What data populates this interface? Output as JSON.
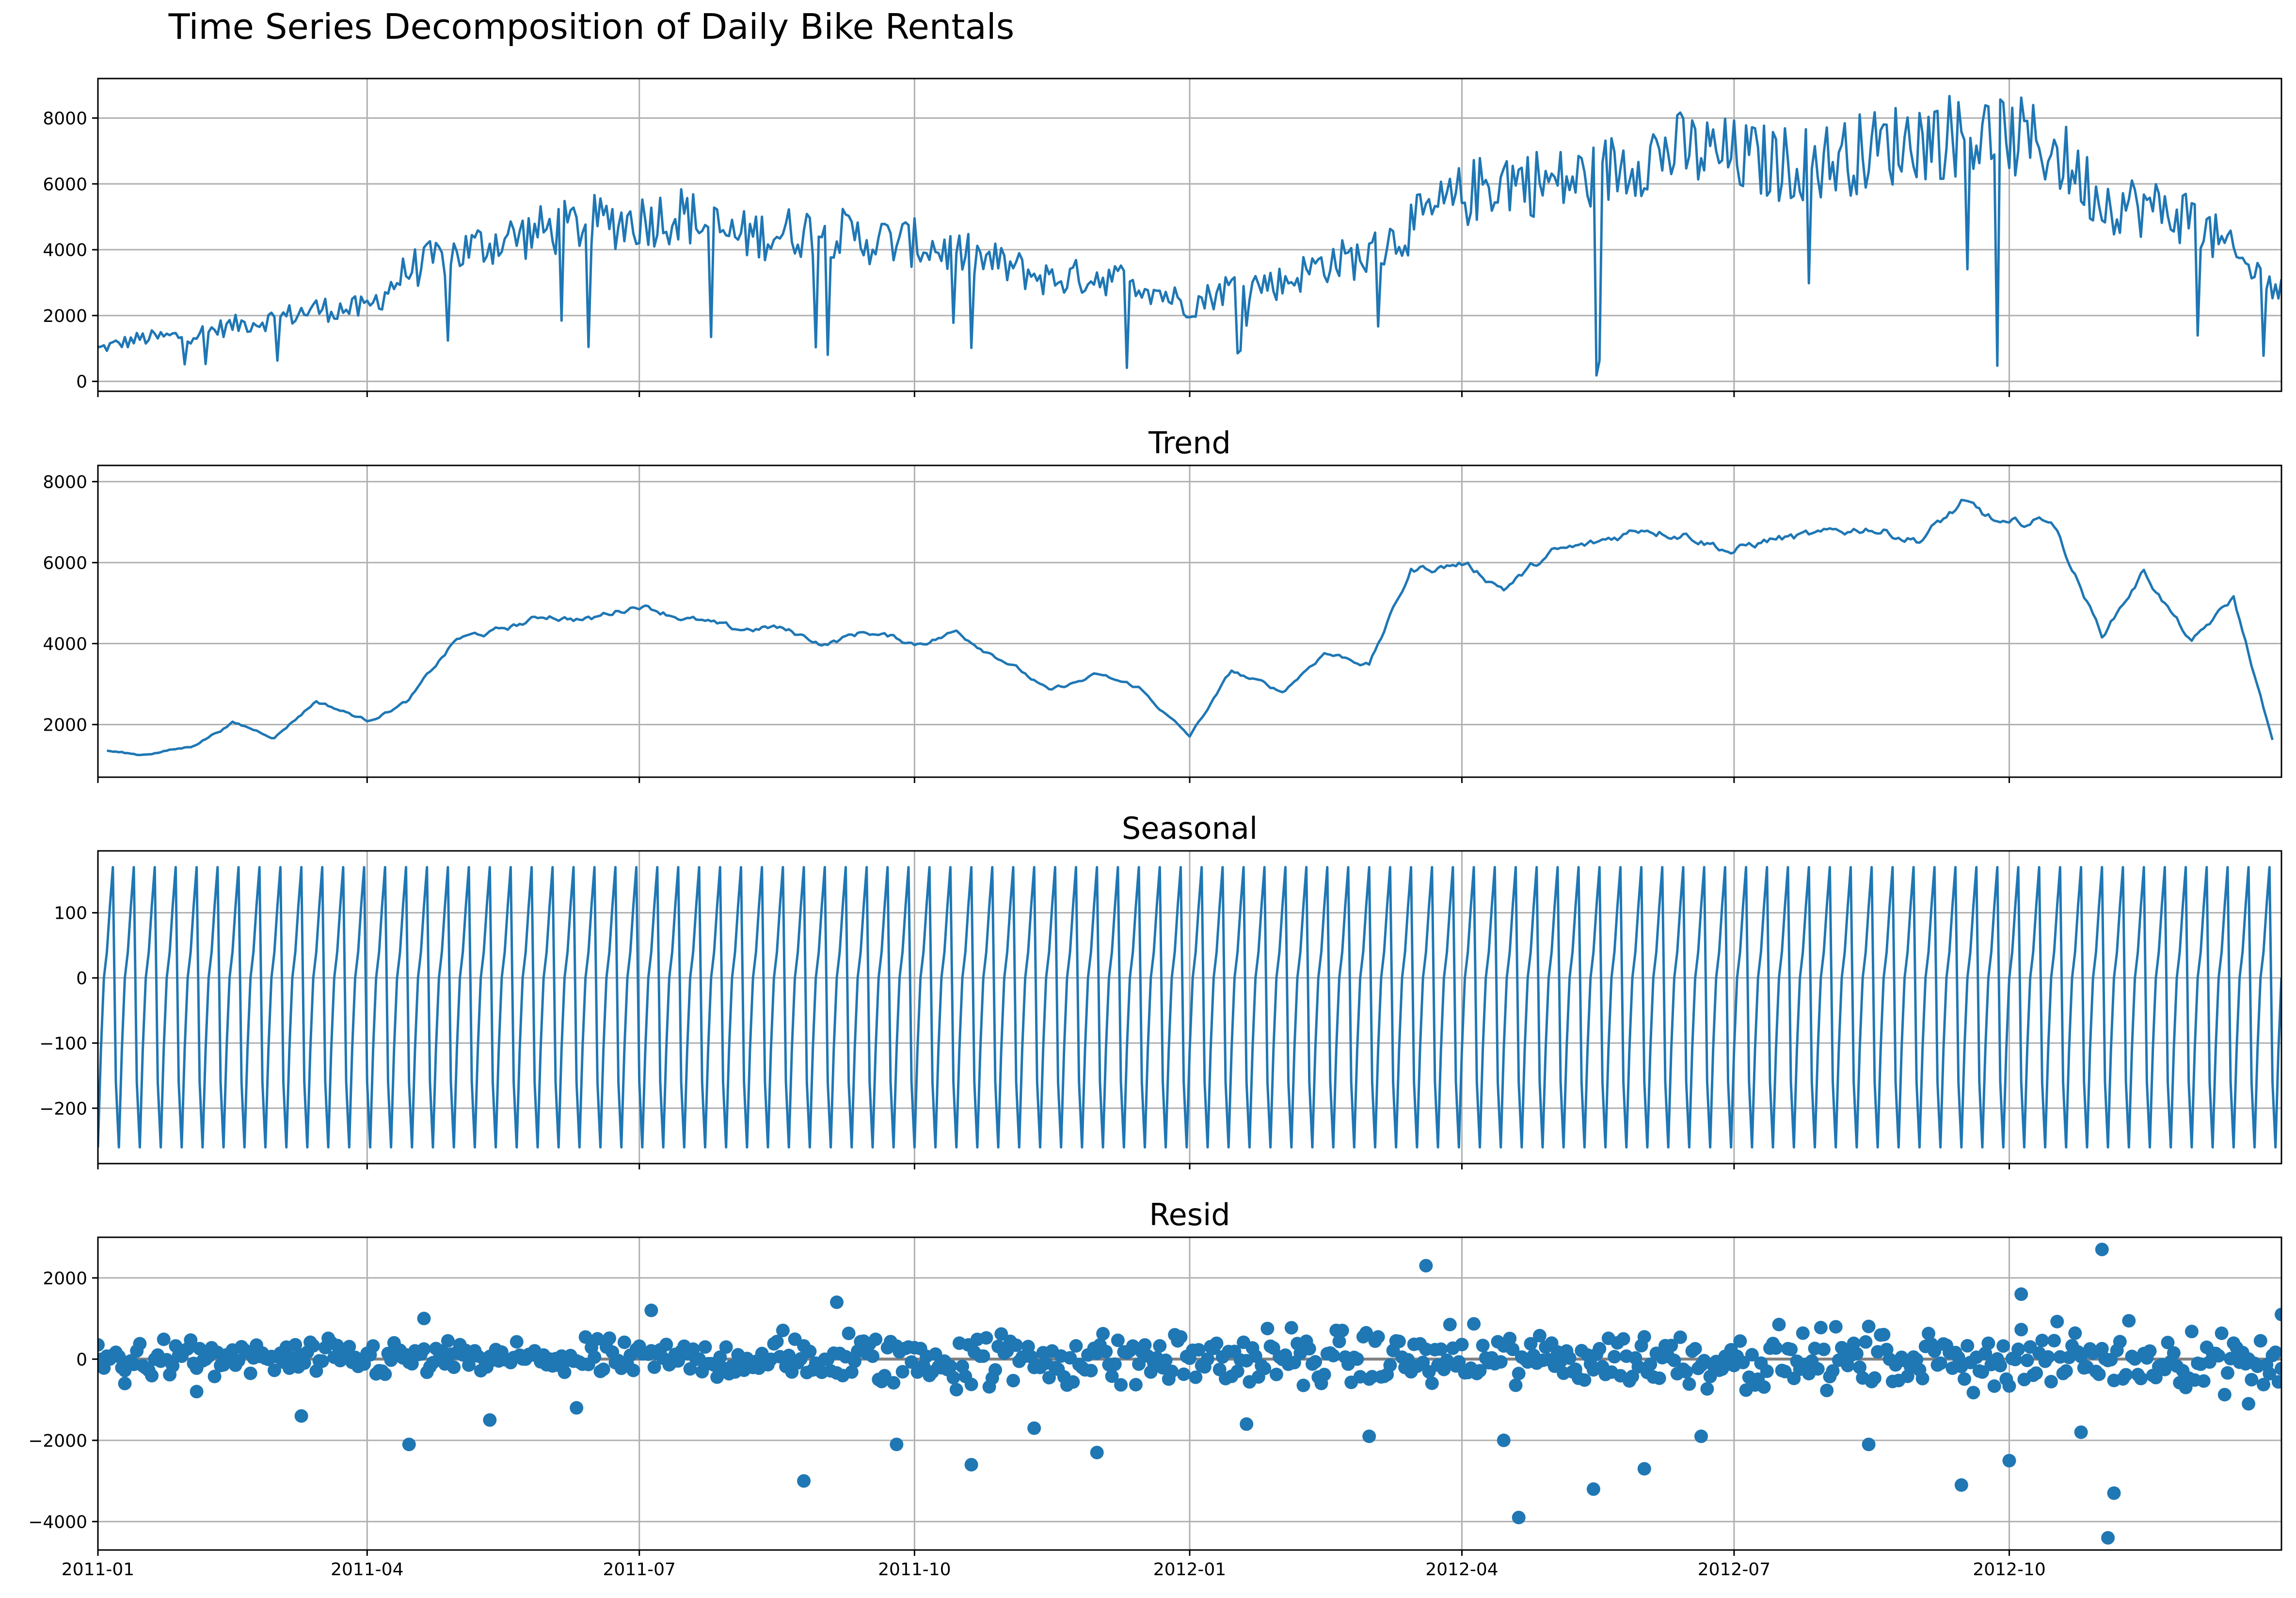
{
  "figure": {
    "title": "Time Series Decomposition of Daily Bike Rentals",
    "line_color": "#1f77b4",
    "grid_color": "#b0b0b0",
    "zero_line_color": "#808080"
  },
  "chart_data": [
    {
      "type": "line",
      "title": "",
      "series_key": "observed",
      "ylim": [
        -300,
        9200
      ],
      "yticks": [
        0,
        2000,
        4000,
        6000,
        8000
      ],
      "ytick_labels": [
        "0",
        "2000",
        "4000",
        "6000",
        "8000"
      ],
      "xlim": [
        "2011-01-01",
        "2012-12-31"
      ],
      "grid": true,
      "x": [
        "2011-01-01",
        "2011-01-15",
        "2011-02-01",
        "2011-02-15",
        "2011-03-01",
        "2011-03-15",
        "2011-04-01",
        "2011-04-15",
        "2011-05-01",
        "2011-05-15",
        "2011-06-01",
        "2011-06-15",
        "2011-07-01",
        "2011-07-15",
        "2011-08-01",
        "2011-08-15",
        "2011-09-01",
        "2011-09-15",
        "2011-10-01",
        "2011-10-15",
        "2011-11-01",
        "2011-11-15",
        "2011-12-01",
        "2011-12-15",
        "2012-01-01",
        "2012-01-15",
        "2012-02-01",
        "2012-02-15",
        "2012-03-01",
        "2012-03-15",
        "2012-04-01",
        "2012-04-15",
        "2012-05-01",
        "2012-05-15",
        "2012-06-01",
        "2012-06-15",
        "2012-07-01",
        "2012-07-15",
        "2012-08-01",
        "2012-08-15",
        "2012-09-01",
        "2012-09-15",
        "2012-10-01",
        "2012-10-15",
        "2012-11-01",
        "2012-11-15",
        "2012-12-01",
        "2012-12-15",
        "2012-12-31"
      ],
      "values": [
        985,
        1300,
        1400,
        1700,
        1900,
        2200,
        2200,
        3400,
        3900,
        4300,
        4600,
        4800,
        4900,
        5100,
        4400,
        4500,
        4600,
        4300,
        4200,
        3900,
        3500,
        3100,
        3200,
        3000,
        2300,
        2900,
        3000,
        3600,
        3800,
        4700,
        5600,
        6200,
        6000,
        6200,
        6900,
        7000,
        6800,
        6600,
        6700,
        7000,
        7400,
        7500,
        7400,
        7100,
        5500,
        5300,
        5000,
        3800,
        2700
      ]
    },
    {
      "type": "line",
      "title": "Trend",
      "series_key": "trend",
      "ylim": [
        700,
        8400
      ],
      "yticks": [
        2000,
        4000,
        6000,
        8000
      ],
      "ytick_labels": [
        "2000",
        "4000",
        "6000",
        "8000"
      ],
      "xlim": [
        "2011-01-01",
        "2012-12-31"
      ],
      "grid": true,
      "x": [
        "2011-01-04",
        "2011-01-15",
        "2011-02-01",
        "2011-02-15",
        "2011-03-01",
        "2011-03-15",
        "2011-04-01",
        "2011-04-15",
        "2011-05-01",
        "2011-05-15",
        "2011-06-01",
        "2011-06-15",
        "2011-07-01",
        "2011-07-15",
        "2011-08-01",
        "2011-08-15",
        "2011-09-01",
        "2011-09-15",
        "2011-10-01",
        "2011-10-15",
        "2011-11-01",
        "2011-11-15",
        "2011-12-01",
        "2011-12-15",
        "2012-01-01",
        "2012-01-15",
        "2012-02-01",
        "2012-02-15",
        "2012-03-01",
        "2012-03-15",
        "2012-04-01",
        "2012-04-15",
        "2012-05-01",
        "2012-05-15",
        "2012-06-01",
        "2012-06-15",
        "2012-07-01",
        "2012-07-15",
        "2012-08-01",
        "2012-08-15",
        "2012-09-01",
        "2012-09-15",
        "2012-10-01",
        "2012-10-15",
        "2012-11-01",
        "2012-11-15",
        "2012-12-01",
        "2012-12-15",
        "2012-12-28"
      ],
      "values": [
        1350,
        1250,
        1450,
        2050,
        1700,
        2600,
        2100,
        2600,
        4100,
        4300,
        4700,
        4600,
        5000,
        4700,
        4300,
        4400,
        4000,
        4300,
        4000,
        4300,
        3600,
        2800,
        3200,
        2900,
        1700,
        3300,
        2800,
        3800,
        3500,
        5800,
        6000,
        5400,
        6200,
        6400,
        6900,
        6800,
        6300,
        6600,
        6600,
        6900,
        6600,
        7400,
        6800,
        7100,
        4200,
        5800,
        4000,
        5100,
        1600
      ]
    },
    {
      "type": "line",
      "title": "Seasonal",
      "series_key": "seasonal",
      "ylim": [
        -285,
        195
      ],
      "yticks": [
        -200,
        -100,
        0,
        100
      ],
      "ytick_labels": [
        "−200",
        "−100",
        "0",
        "100"
      ],
      "xlim": [
        "2011-01-01",
        "2012-12-31"
      ],
      "grid": true,
      "period_days": 7,
      "weekly_pattern": [
        -260,
        -110,
        0,
        40,
        110,
        170,
        -160
      ]
    },
    {
      "type": "scatter",
      "title": "Resid",
      "series_key": "resid",
      "ylim": [
        -4700,
        3000
      ],
      "yticks": [
        -4000,
        -2000,
        0,
        2000
      ],
      "ytick_labels": [
        "−4000",
        "−2000",
        "0",
        "2000"
      ],
      "xlim": [
        "2011-01-01",
        "2012-12-31"
      ],
      "grid": true,
      "zero_line": true,
      "x": [
        "2011-01-10",
        "2011-02-03",
        "2011-03-10",
        "2011-04-15",
        "2011-04-20",
        "2011-05-12",
        "2011-06-10",
        "2011-07-05",
        "2011-08-25",
        "2011-09-05",
        "2011-09-25",
        "2011-10-20",
        "2011-11-10",
        "2011-12-01",
        "2012-01-20",
        "2012-03-01",
        "2012-03-20",
        "2012-04-15",
        "2012-04-20",
        "2012-05-15",
        "2012-06-01",
        "2012-06-20",
        "2012-08-15",
        "2012-09-15",
        "2012-10-01",
        "2012-10-05",
        "2012-10-25",
        "2012-11-01",
        "2012-11-03",
        "2012-11-05",
        "2012-12-20",
        "2012-12-31"
      ],
      "values": [
        -600,
        -800,
        -1400,
        -2100,
        1000,
        -1500,
        -1200,
        1200,
        -3000,
        1400,
        -2100,
        -2600,
        -1700,
        -2300,
        -1600,
        -1900,
        2300,
        -2000,
        -3900,
        -3200,
        -2700,
        -1900,
        -2100,
        -3100,
        -2500,
        1600,
        -1800,
        2700,
        -4400,
        -3300,
        -1100,
        1100
      ]
    }
  ],
  "x_axis": {
    "ticks": [
      "2011-01-01",
      "2011-04-01",
      "2011-07-01",
      "2011-10-01",
      "2012-01-01",
      "2012-04-01",
      "2012-07-01",
      "2012-10-01"
    ],
    "tick_labels": [
      "2011-01",
      "2011-04",
      "2011-07",
      "2011-10",
      "2012-01",
      "2012-04",
      "2012-07",
      "2012-10"
    ]
  }
}
